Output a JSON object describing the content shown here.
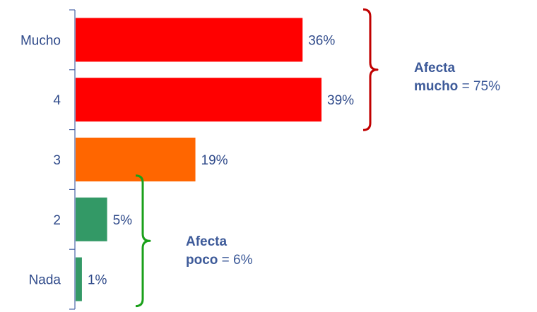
{
  "chart_data": {
    "type": "bar",
    "orientation": "horizontal",
    "categories": [
      "Mucho",
      "4",
      "3",
      "2",
      "Nada"
    ],
    "values": [
      36,
      39,
      19,
      5,
      1
    ],
    "value_labels": [
      "36%",
      "39%",
      "19%",
      "5%",
      "1%"
    ],
    "bar_colors": [
      "#ff0000",
      "#ff0000",
      "#ff6600",
      "#339966",
      "#339966"
    ],
    "xlim": [
      0,
      39
    ],
    "annotations": [
      {
        "bold": "Afecta mucho",
        "rest": "= 75%",
        "bracket_color": "#c00000",
        "groups": [
          "Mucho",
          "4"
        ]
      },
      {
        "bold": "Afecta poco",
        "rest": "= 6%",
        "bracket_color": "#1aa01a",
        "groups": [
          "2",
          "Nada"
        ]
      }
    ]
  }
}
